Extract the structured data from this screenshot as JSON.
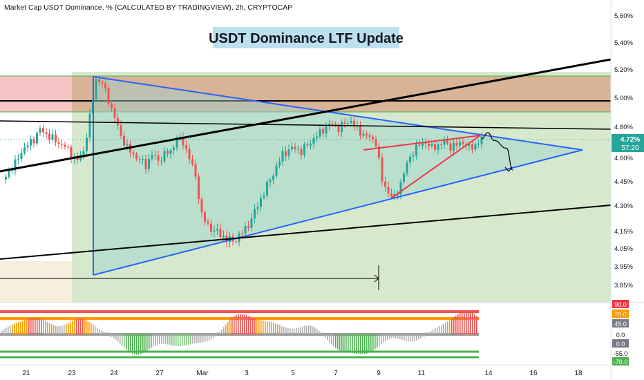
{
  "header": {
    "symbol_line": "Market Cap USDT Dominance, % (CALCULATED BY TRADINGVIEW), 2h, CRYPTOCAP"
  },
  "banner": {
    "title": "USDT Dominance LTF Update",
    "bg_color": "#bde0ef"
  },
  "price_badge": {
    "value": "4.72%",
    "countdown": "57:20",
    "color": "#26a69a"
  },
  "colors": {
    "up": "#26a69a",
    "down": "#ef5350",
    "triangle": "#2962ff",
    "wedge": "#f23645",
    "supply_zone": "#d9a98c",
    "red_zone": "#f7c5c5",
    "green_zone": "#cfe5c4"
  },
  "chart_data": [
    {
      "type": "candlestick",
      "x_tick_labels": [
        "21",
        "23",
        "24",
        "27",
        "Mar",
        "3",
        "5",
        "7",
        "9",
        "11",
        "14",
        "16",
        "18"
      ],
      "y_tick_labels": [
        "5.60%",
        "5.40%",
        "5.20%",
        "5.00%",
        "4.80%",
        "4.60%",
        "4.45%",
        "4.30%",
        "4.15%",
        "4.05%",
        "3.95%",
        "3.85%"
      ],
      "y_axis": {
        "position": "right",
        "unit": "%"
      },
      "ylim": [
        3.82,
        5.66
      ],
      "close_path": [
        [
          0,
          4.46
        ],
        [
          2,
          4.56
        ],
        [
          3,
          4.64
        ],
        [
          5,
          4.72
        ],
        [
          6,
          4.78
        ],
        [
          8,
          4.72
        ],
        [
          10,
          4.67
        ],
        [
          11,
          4.62
        ],
        [
          12,
          4.58
        ],
        [
          13,
          4.64
        ],
        [
          14,
          4.86
        ],
        [
          15,
          5.13
        ],
        [
          16,
          5.1
        ],
        [
          17,
          4.98
        ],
        [
          18,
          4.86
        ],
        [
          19,
          4.74
        ],
        [
          20,
          4.66
        ],
        [
          21,
          4.62
        ],
        [
          23,
          4.55
        ],
        [
          24,
          4.62
        ],
        [
          25,
          4.58
        ],
        [
          26,
          4.62
        ],
        [
          27,
          4.64
        ],
        [
          28,
          4.72
        ],
        [
          29,
          4.7
        ],
        [
          30,
          4.6
        ],
        [
          31,
          4.48
        ],
        [
          32,
          4.24
        ],
        [
          33,
          4.18
        ],
        [
          34,
          4.15
        ],
        [
          35,
          4.13
        ],
        [
          36,
          4.1
        ],
        [
          37,
          4.09
        ],
        [
          38,
          4.12
        ],
        [
          39,
          4.16
        ],
        [
          40,
          4.22
        ],
        [
          41,
          4.3
        ],
        [
          42,
          4.38
        ],
        [
          43,
          4.46
        ],
        [
          44,
          4.54
        ],
        [
          45,
          4.62
        ],
        [
          46,
          4.65
        ],
        [
          47,
          4.66
        ],
        [
          48,
          4.64
        ],
        [
          49,
          4.68
        ],
        [
          50,
          4.72
        ],
        [
          51,
          4.76
        ],
        [
          52,
          4.8
        ],
        [
          53,
          4.82
        ],
        [
          54,
          4.79
        ],
        [
          55,
          4.82
        ],
        [
          56,
          4.84
        ],
        [
          57,
          4.78
        ],
        [
          58,
          4.75
        ],
        [
          59,
          4.73
        ],
        [
          60,
          4.7
        ],
        [
          61,
          4.45
        ],
        [
          62,
          4.38
        ],
        [
          63,
          4.34
        ],
        [
          64,
          4.44
        ],
        [
          65,
          4.56
        ],
        [
          66,
          4.64
        ],
        [
          67,
          4.68
        ],
        [
          68,
          4.7
        ],
        [
          69,
          4.66
        ],
        [
          70,
          4.68
        ],
        [
          71,
          4.7
        ],
        [
          72,
          4.67
        ],
        [
          73,
          4.68
        ],
        [
          74,
          4.7
        ],
        [
          75,
          4.66
        ],
        [
          76,
          4.68
        ],
        [
          77,
          4.72
        ]
      ],
      "projection": [
        [
          77,
          4.72
        ],
        [
          78,
          4.76
        ],
        [
          79,
          4.71
        ],
        [
          81,
          4.66
        ],
        [
          82,
          4.52
        ]
      ],
      "drawings": {
        "symmetrical_triangle": "blue",
        "rising_wedge": "red",
        "supply_zone": true,
        "resistance_line": true
      },
      "grid": false
    },
    {
      "type": "oscillator",
      "y_tick_labels": [
        "90.0",
        "70.0",
        "45.0",
        "0.0",
        "0.0",
        "-55.0",
        "-70.0"
      ],
      "levels": {
        "upper_red": 90,
        "upper_orange": 70,
        "mid": 0,
        "lower_green": -55,
        "lower_green2": -70
      }
    }
  ]
}
